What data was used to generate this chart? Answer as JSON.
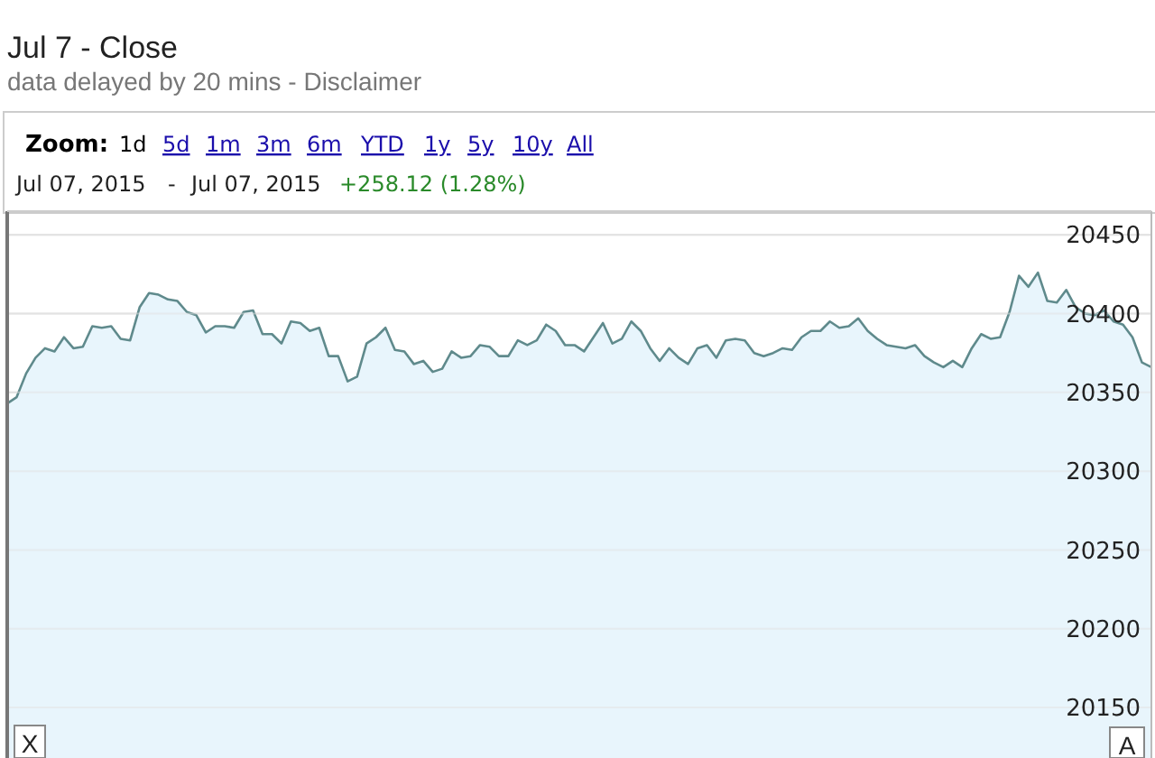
{
  "chart_data": {
    "type": "area",
    "title": "Jul 7 - Close",
    "subtitle": "data delayed by 20 mins - Disclaimer",
    "annotations": [
      "Zoom:",
      "1d",
      "5d",
      "1m",
      "3m",
      "6m",
      "YTD",
      "1y",
      "5y",
      "10y",
      "All",
      "Jul 07, 2015",
      "-",
      "Jul 07, 2015",
      "+258.12 (1.28%)",
      "X",
      "A"
    ],
    "categories": [
      null,
      null,
      null,
      null,
      null,
      null,
      null,
      null,
      null,
      null,
      null,
      null,
      null,
      null,
      null,
      null,
      null,
      null,
      null,
      null,
      null,
      null,
      null,
      null,
      null,
      null,
      null,
      null,
      null,
      null,
      null,
      null,
      null,
      null,
      null,
      null,
      null,
      null,
      null,
      null,
      null,
      null,
      null,
      null,
      null,
      null,
      null,
      null,
      null,
      null,
      null,
      null,
      null,
      null,
      null,
      null,
      null,
      null,
      null,
      null,
      null,
      null,
      null,
      null,
      null,
      null,
      null,
      null,
      null,
      null,
      null,
      null,
      null,
      null,
      null,
      null,
      null,
      null,
      null,
      null,
      null,
      null,
      null,
      null,
      null,
      null,
      null,
      null,
      null,
      null,
      null,
      null,
      null,
      null,
      null,
      null,
      null,
      null,
      null,
      null,
      null,
      null,
      null,
      null,
      null,
      null,
      null,
      null,
      null,
      null,
      null,
      null,
      null,
      null,
      null,
      null,
      null,
      null,
      null,
      null,
      null,
      null
    ],
    "series": [
      {
        "color": "#5f8a8c",
        "values": [
          20343,
          20347,
          20362,
          20372,
          20378,
          20376,
          20385,
          20378,
          20379,
          20392,
          20391,
          20392,
          20384,
          20383,
          20404,
          20413,
          20412,
          20409,
          20408,
          20401,
          20399,
          20388,
          20392,
          20392,
          20391,
          20401,
          20402,
          20387,
          20387,
          20381,
          20395,
          20394,
          20389,
          20391,
          20373,
          20373,
          20357,
          20360,
          20381,
          20385,
          20391,
          20377,
          20376,
          20368,
          20370,
          20363,
          20365,
          20376,
          20372,
          20373,
          20380,
          20379,
          20373,
          20373,
          20383,
          20380,
          20383,
          20393,
          20389,
          20380,
          20380,
          20376,
          20385,
          20394,
          20381,
          20384,
          20395,
          20389,
          20378,
          20370,
          20378,
          20372,
          20368,
          20378,
          20380,
          20372,
          20383,
          20384,
          20383,
          20375,
          20373,
          20375,
          20378,
          20377,
          20385,
          20389,
          20389,
          20395,
          20391,
          20392,
          20397,
          20389,
          20384,
          20380,
          20379,
          20378,
          20380,
          20373,
          20369,
          20366,
          20370,
          20366,
          20378,
          20387,
          20384,
          20385,
          20401,
          20424,
          20417,
          20426,
          20408,
          20407,
          20415,
          20404,
          20400,
          20399,
          20402,
          20395,
          20393,
          20385,
          20369,
          20366
        ]
      }
    ],
    "ylim": [
      20118,
      20465
    ],
    "yticks": [
      20150,
      20200,
      20250,
      20300,
      20350,
      20400,
      20450
    ],
    "grid": "y",
    "tick_labels": "y"
  }
}
